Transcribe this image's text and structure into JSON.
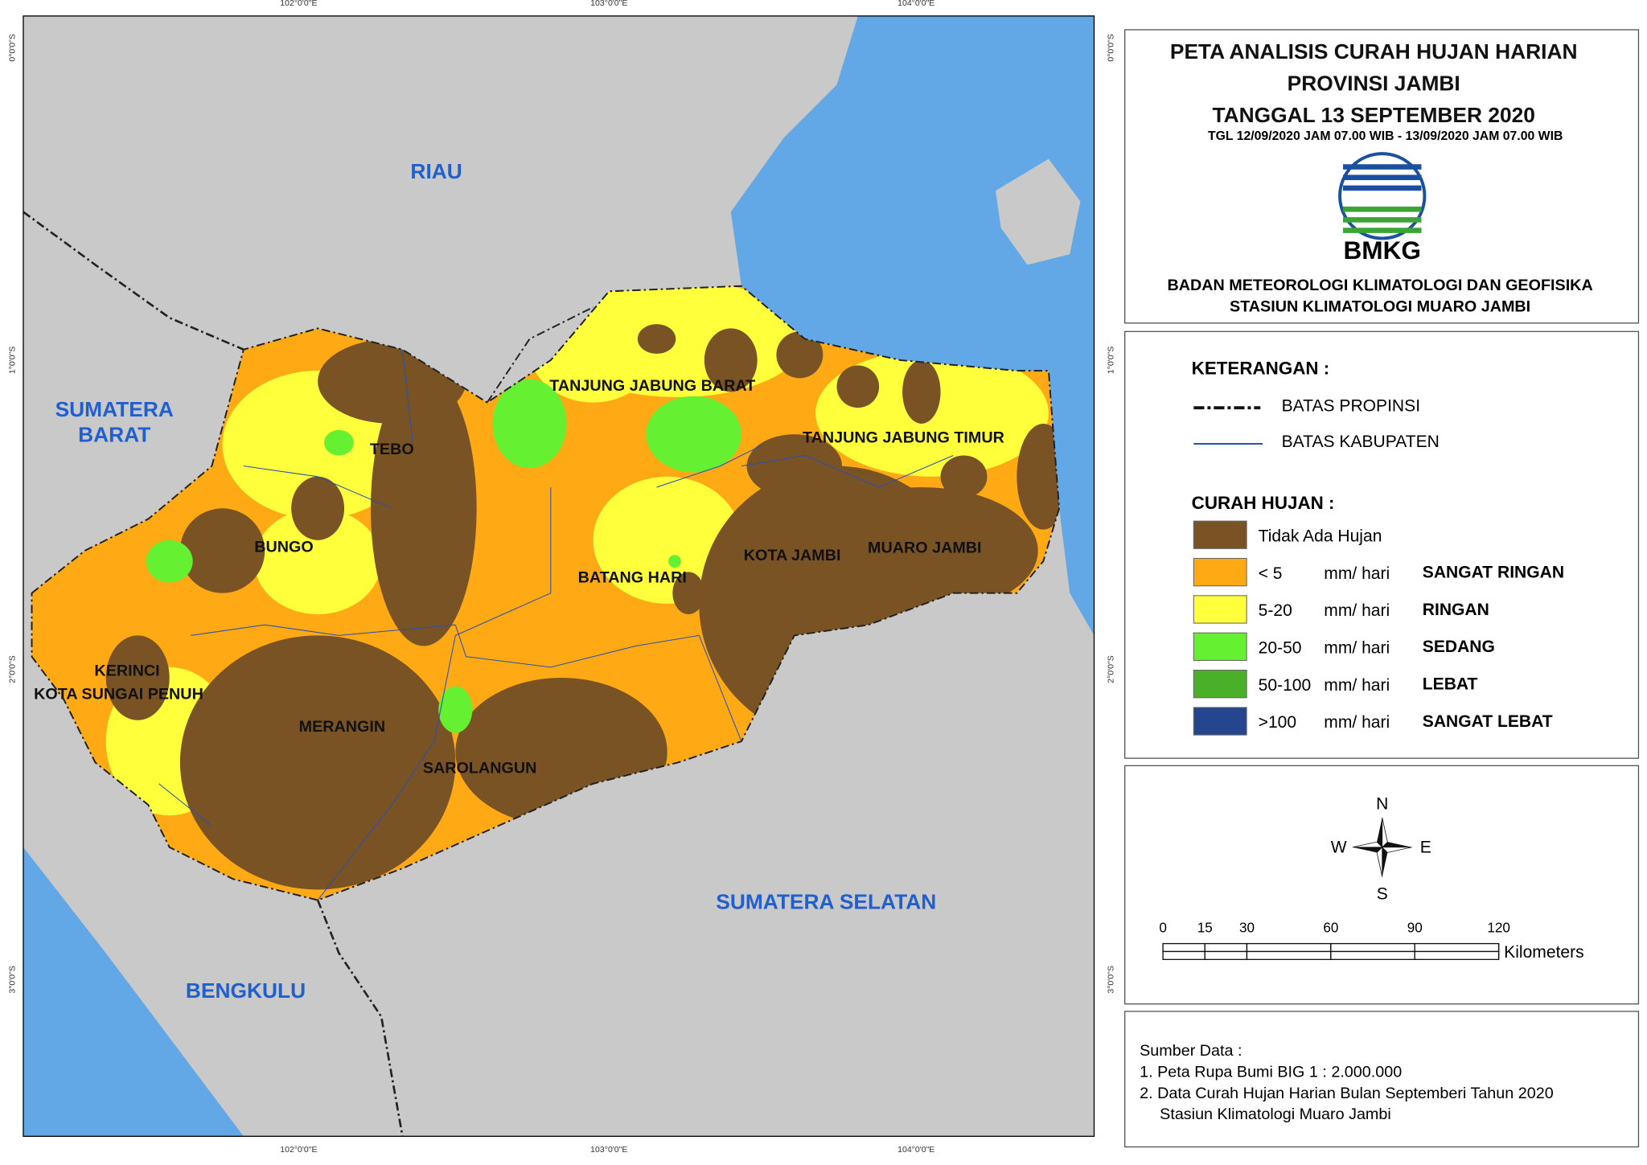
{
  "header": {
    "title": [
      "PETA ANALISIS CURAH HUJAN HARIAN",
      "PROVINSI JAMBI",
      "TANGGAL 13 SEPTEMBER 2020"
    ],
    "subtitle": "TGL 12/09/2020 JAM 07.00 WIB - 13/09/2020 JAM 07.00 WIB",
    "logo_text": "BMKG",
    "agency": [
      "BADAN METEOROLOGI KLIMATOLOGI DAN GEOFISIKA",
      "STASIUN KLIMATOLOGI MUARO JAMBI"
    ]
  },
  "map": {
    "provinces": [
      [
        "RIAU"
      ],
      [
        "SUMATERA",
        "BARAT"
      ],
      [
        "SUMATERA SELATAN"
      ],
      [
        "BENGKULU"
      ]
    ],
    "districts": [
      "TANJUNG JABUNG BARAT",
      "TEBO",
      "TANJUNG JABUNG TIMUR",
      "BUNGO",
      "KOTA JAMBI",
      "MUARO JAMBI",
      "BATANG HARI",
      "KERINCI",
      "KOTA SUNGAI PENUH",
      "MERANGIN",
      "SAROLANGUN"
    ],
    "longitudes": [
      "102°0'0\"E",
      "103°0'0\"E",
      "104°0'0\"E"
    ],
    "latitudes": [
      "0°0'0\"S",
      "1°0'0\"S",
      "2°0'0\"S",
      "3°0'0\"S"
    ]
  },
  "legend": {
    "heading": "KETERANGAN :",
    "lines": [
      "BATAS PROPINSI",
      "BATAS KABUPATEN"
    ],
    "rain_heading": "CURAH HUJAN :",
    "classes": [
      {
        "range": "Tidak Ada Hujan",
        "color": "#7a5325"
      },
      {
        "range": "< 5",
        "unit": "mm/ hari",
        "category": "SANGAT RINGAN",
        "color": "#ffaa14"
      },
      {
        "range": "5-20",
        "unit": "mm/ hari",
        "category": "RINGAN",
        "color": "#ffff3c"
      },
      {
        "range": "20-50",
        "unit": "mm/ hari",
        "category": "SEDANG",
        "color": "#66f032"
      },
      {
        "range": "50-100",
        "unit": "mm/ hari",
        "category": "LEBAT",
        "color": "#4ab02a"
      },
      {
        "range": ">100",
        "unit": "mm/ hari",
        "category": "SANGAT LEBAT",
        "color": "#25458f"
      }
    ]
  },
  "compass": {
    "n": "N",
    "s": "S",
    "e": "E",
    "w": "W"
  },
  "scale_bar": {
    "ticks": [
      0,
      15,
      30,
      60,
      90,
      120
    ],
    "unit": "Kilometers"
  },
  "sources": {
    "heading": "Sumber Data :",
    "items": [
      "1. Peta Rupa Bumi BIG 1 : 2.000.000",
      "2. Data Curah Hujan Harian Bulan Septemberi Tahun 2020",
      "Stasiun Klimatologi Muaro Jambi"
    ]
  }
}
